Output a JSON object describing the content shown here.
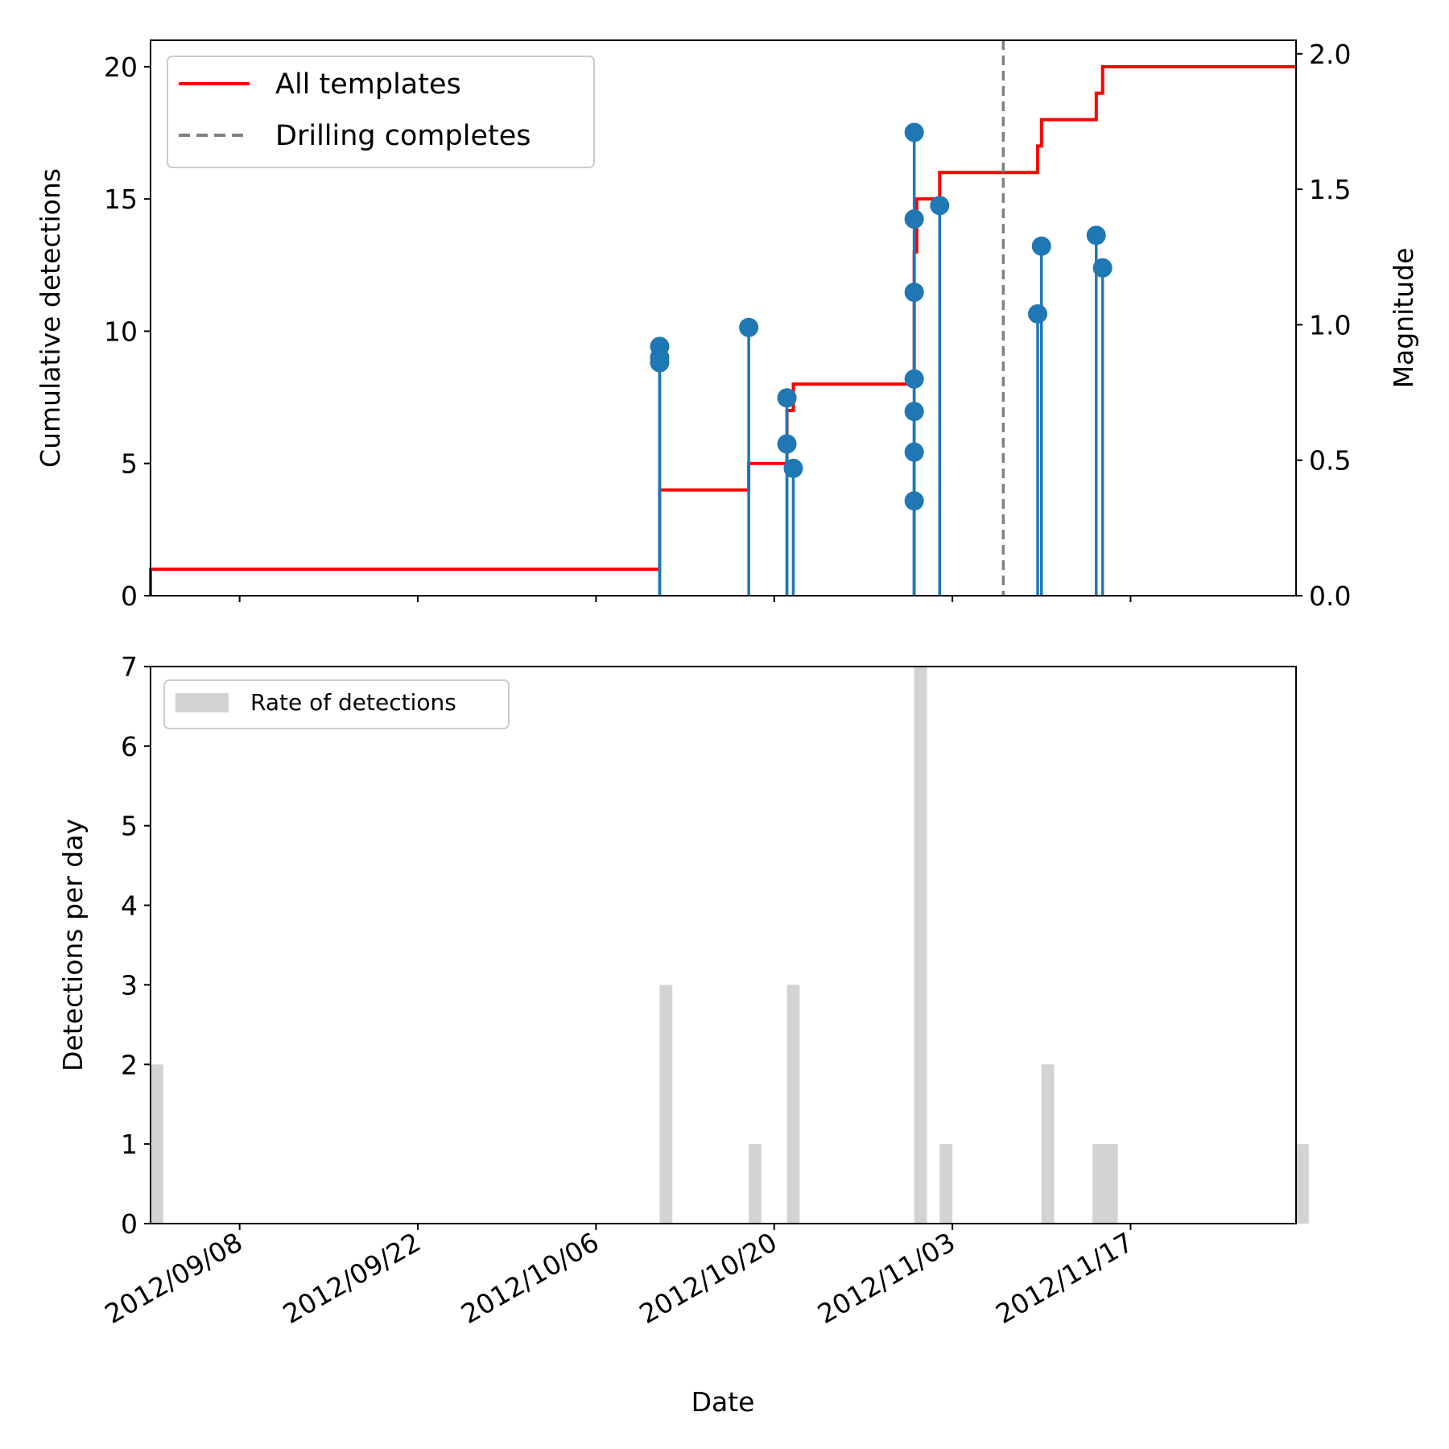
{
  "chart_data": [
    {
      "type": "line",
      "panel": "top",
      "xlim": [
        "2012-09-01",
        "2012-11-30"
      ],
      "ylabel": "Cumulative detections",
      "ylim": [
        0,
        21
      ],
      "yticks": [
        0,
        5,
        10,
        15,
        20
      ],
      "y2label": "Magnitude",
      "y2lim": [
        0,
        2.05
      ],
      "y2ticks": [
        "0.0",
        "0.5",
        "1.0",
        "1.5",
        "2.0"
      ],
      "legend": {
        "placement": "top-left",
        "entries": [
          {
            "label": "All templates",
            "color": "#ff0000",
            "style": "solid"
          },
          {
            "label": "Drilling completes",
            "color": "#808080",
            "style": "dashed"
          }
        ]
      },
      "series": [
        {
          "name": "All templates",
          "kind": "step",
          "color": "#ff0000",
          "points": [
            [
              "2012-09-01",
              0
            ],
            [
              "2012-09-01",
              1
            ],
            [
              "2012-10-11",
              1
            ],
            [
              "2012-10-11",
              4
            ],
            [
              "2012-10-18",
              4
            ],
            [
              "2012-10-18",
              5
            ],
            [
              "2012-10-21",
              5
            ],
            [
              "2012-10-21",
              7
            ],
            [
              "2012-10-21.5",
              7
            ],
            [
              "2012-10-21.5",
              8
            ],
            [
              "2012-10-31",
              8
            ],
            [
              "2012-10-31",
              13
            ],
            [
              "2012-10-31.2",
              13
            ],
            [
              "2012-10-31.2",
              15
            ],
            [
              "2012-11-02",
              15
            ],
            [
              "2012-11-02",
              16
            ],
            [
              "2012-11-09.7",
              16
            ],
            [
              "2012-11-09.7",
              17
            ],
            [
              "2012-11-10",
              17
            ],
            [
              "2012-11-10",
              18
            ],
            [
              "2012-11-14.3",
              18
            ],
            [
              "2012-11-14.3",
              19
            ],
            [
              "2012-11-14.8",
              19
            ],
            [
              "2012-11-14.8",
              20
            ],
            [
              "2012-11-30",
              20
            ]
          ]
        },
        {
          "name": "Drilling completes",
          "kind": "vline",
          "color": "#808080",
          "x": "2012-11-07"
        },
        {
          "kind": "stem",
          "axis": "right",
          "color": "#1f77b4",
          "points": [
            [
              "2012-10-11",
              0.92
            ],
            [
              "2012-10-11",
              0.88
            ],
            [
              "2012-10-11",
              0.86
            ],
            [
              "2012-10-18",
              0.99
            ],
            [
              "2012-10-21",
              0.73
            ],
            [
              "2012-10-21",
              0.56
            ],
            [
              "2012-10-21.5",
              0.47
            ],
            [
              "2012-10-31",
              1.71
            ],
            [
              "2012-10-31",
              1.39
            ],
            [
              "2012-10-31",
              1.12
            ],
            [
              "2012-10-31",
              0.8
            ],
            [
              "2012-10-31",
              0.68
            ],
            [
              "2012-10-31",
              0.53
            ],
            [
              "2012-10-31",
              0.35
            ],
            [
              "2012-11-02",
              1.44
            ],
            [
              "2012-11-09.7",
              1.04
            ],
            [
              "2012-11-10",
              1.29
            ],
            [
              "2012-11-14.3",
              1.33
            ],
            [
              "2012-11-14.8",
              1.21
            ]
          ]
        }
      ]
    },
    {
      "type": "bar",
      "panel": "bottom",
      "xlabel": "Date",
      "ylabel": "Detections per day",
      "xlim": [
        "2012-09-01",
        "2012-11-30"
      ],
      "ylim": [
        0,
        7
      ],
      "yticks": [
        0,
        1,
        2,
        3,
        4,
        5,
        6,
        7
      ],
      "xticks": [
        "2012/09/08",
        "2012/09/22",
        "2012/10/06",
        "2012/10/20",
        "2012/11/03",
        "2012/11/17"
      ],
      "xtick_dates": [
        "2012-09-08",
        "2012-09-22",
        "2012-10-06",
        "2012-10-20",
        "2012-11-03",
        "2012-11-17"
      ],
      "legend": {
        "placement": "top-left",
        "entries": [
          {
            "label": "Rate of detections",
            "color": "#d3d3d3"
          }
        ]
      },
      "series": [
        {
          "name": "Rate of detections",
          "color": "#d3d3d3",
          "bars": [
            [
              "2012-09-01",
              2
            ],
            [
              "2012-10-11",
              3
            ],
            [
              "2012-10-18",
              1
            ],
            [
              "2012-10-21",
              3
            ],
            [
              "2012-10-31",
              7
            ],
            [
              "2012-11-02",
              1
            ],
            [
              "2012-11-10",
              2
            ],
            [
              "2012-11-14",
              1
            ],
            [
              "2012-11-15",
              1
            ],
            [
              "2012-11-30",
              1
            ]
          ]
        }
      ]
    }
  ]
}
